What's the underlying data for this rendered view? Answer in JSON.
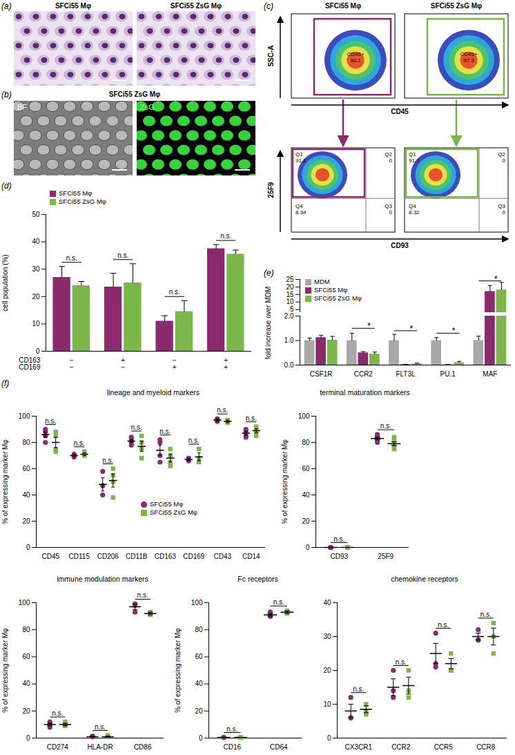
{
  "images": [
    {
      "panel": "(a)",
      "labels": [
        "SFCi55 Mφ",
        "SFCi55 ZsG Mφ"
      ]
    },
    {
      "panel": "(b)",
      "title": "SFCi55 ZsG Mφ",
      "labels": [
        "BF",
        "ZsG"
      ]
    }
  ],
  "flow_cytometry": {
    "panel": "(c)",
    "columns": [
      "SFCi55 Mφ",
      "SFCi55 ZsG Mφ"
    ],
    "colors": [
      "#8c2a6e",
      "#7ab648"
    ],
    "top": {
      "xlabel": "CD45",
      "ylabel": "SSC-A",
      "gates": [
        {
          "label": "CD45+",
          "value": 98.1
        },
        {
          "label": "CD45+",
          "value": 97.3
        }
      ]
    },
    "bottom": {
      "xlabel": "CD93",
      "ylabel": "25F9",
      "quadrants": [
        {
          "Q1": 91.1,
          "Q2": 0,
          "Q3": 0,
          "Q4": 8.94
        },
        {
          "Q1": 91.7,
          "Q2": 0,
          "Q3": 0,
          "Q4": 8.32
        }
      ]
    }
  },
  "chart_data": [
    {
      "panel": "(d)",
      "type": "bar",
      "ylabel": "cell population (%)",
      "ylim": [
        0,
        50
      ],
      "yticks": [
        0,
        10,
        20,
        30,
        40,
        50
      ],
      "categories": [
        null,
        null,
        null,
        null
      ],
      "category_rows": [
        {
          "name": "CD163",
          "labels": [
            "−",
            "+",
            "−",
            "+"
          ]
        },
        {
          "name": "CD169",
          "labels": [
            "−",
            "−",
            "+",
            "+"
          ]
        }
      ],
      "series": [
        {
          "name": "SFCi55 Mφ",
          "color": "#8c2a6e",
          "values": [
            27,
            23.5,
            11,
            37.5
          ],
          "errors": [
            4,
            5,
            2,
            1.5
          ]
        },
        {
          "name": "SFCi55 ZsG Mφ",
          "color": "#7ab648",
          "values": [
            24,
            25,
            14.5,
            35.5
          ],
          "errors": [
            1.5,
            7,
            4,
            1.5
          ]
        }
      ],
      "significance": [
        "n.s.",
        "n.s.",
        "n.s.",
        "n.s."
      ],
      "legend": "top-left"
    },
    {
      "panel": "(e)",
      "type": "bar",
      "ylabel": "fold increase over MDM",
      "categories": [
        "CSF1R",
        "CCR2",
        "FLT3L",
        "PU.1",
        "MAF"
      ],
      "axes": [
        {
          "ylim": [
            3,
            25
          ],
          "yticks": [
            5,
            10,
            15,
            20,
            25
          ]
        },
        {
          "ylim": [
            0,
            2
          ],
          "yticks": [
            0,
            1,
            2
          ]
        }
      ],
      "series": [
        {
          "name": "MDM",
          "color": "#a8a8a8",
          "values": [
            1,
            1,
            1,
            1,
            1
          ],
          "errors": [
            0.1,
            0.3,
            0.25,
            0.12,
            0.18
          ]
        },
        {
          "name": "SFCi55 Mφ",
          "color": "#8c2a6e",
          "values": [
            1.12,
            0.5,
            0.02,
            0.01,
            17
          ],
          "errors": [
            0.1,
            0.05,
            0.01,
            0.01,
            4
          ]
        },
        {
          "name": "SFCi55 ZsG Mφ",
          "color": "#7ab648",
          "values": [
            1.02,
            0.45,
            0.05,
            0.1,
            18
          ],
          "errors": [
            0.15,
            0.08,
            0.03,
            0.05,
            5
          ]
        }
      ],
      "significance": [
        {
          "category": "CCR2",
          "text": "*",
          "y": 1.5
        },
        {
          "category": "FLT3L",
          "text": "*",
          "y": 1.4
        },
        {
          "category": "PU.1",
          "text": "*",
          "y": 1.3
        },
        {
          "category": "MAF",
          "text": "*",
          "y": 24
        }
      ],
      "legend": "top-left"
    },
    {
      "panel": "(f)",
      "type": "scatter",
      "title": "lineage and myeloid markers",
      "ylabel": "% of expressing marker Mφ",
      "ylim": [
        0,
        100
      ],
      "yticks": [
        0,
        20,
        40,
        60,
        80,
        100
      ],
      "categories": [
        "CD45",
        "CD115",
        "CD206",
        "CD11B",
        "CD163",
        "CD169",
        "CD43",
        "CD14"
      ],
      "series": [
        {
          "name": "SFCi55 Mφ",
          "color": "#8c2a6e",
          "marker": "circle",
          "values": [
            [
              90,
              88,
              85,
              80
            ],
            [
              70,
              69,
              71
            ],
            [
              58,
              40,
              47
            ],
            [
              82,
              80,
              84,
              78
            ],
            [
              82,
              80,
              65,
              70
            ],
            [
              68,
              67,
              66
            ],
            [
              97,
              98,
              96,
              97
            ],
            [
              88,
              85,
              90,
              84
            ]
          ],
          "mean": [
            86,
            70,
            48,
            81,
            74,
            67,
            97,
            87
          ],
          "sem": [
            2,
            1,
            5,
            1,
            4,
            1,
            1,
            1.5
          ]
        },
        {
          "name": "SFCi55 ZsG Mφ",
          "color": "#7ab648",
          "marker": "square",
          "values": [
            [
              88,
              85,
              75,
              73
            ],
            [
              70,
              72,
              73,
              71
            ],
            [
              60,
              38,
              50,
              55
            ],
            [
              85,
              75,
              68,
              80
            ],
            [
              75,
              65,
              62,
              70
            ],
            [
              75,
              65,
              68
            ],
            [
              96,
              97,
              95,
              97
            ],
            [
              92,
              85,
              88,
              90
            ]
          ],
          "mean": [
            80,
            71,
            51,
            77,
            68,
            69,
            96,
            89
          ],
          "sem": [
            4,
            1,
            5,
            4,
            3,
            3,
            1,
            1.5
          ]
        }
      ],
      "significance": [
        "n.s.",
        "n.s.",
        "n.s.",
        "n.s.",
        "n.s.",
        "n.s.",
        "n.s.",
        "n.s."
      ],
      "legend": "bottom-right"
    },
    {
      "type": "scatter",
      "title": "terminal maturation markers",
      "ylabel": "% of expressing marker Mφ",
      "ylim": [
        0,
        100
      ],
      "yticks": [
        0,
        20,
        40,
        60,
        80,
        100
      ],
      "categories": [
        "CD93",
        "25F9"
      ],
      "series": [
        {
          "name": "SFCi55 Mφ",
          "color": "#8c2a6e",
          "marker": "circle",
          "values": [
            [
              0,
              0,
              0,
              0,
              0,
              0
            ],
            [
              83,
              85,
              80,
              82,
              86,
              84
            ]
          ],
          "mean": [
            0,
            83
          ],
          "sem": [
            0,
            1
          ]
        },
        {
          "name": "SFCi55 ZsG Mφ",
          "color": "#7ab648",
          "marker": "square",
          "values": [
            [
              0,
              0,
              0,
              0,
              0,
              0
            ],
            [
              80,
              76,
              84,
              78,
              75,
              82
            ]
          ],
          "mean": [
            0,
            79
          ],
          "sem": [
            0,
            1.5
          ]
        }
      ],
      "significance": [
        "n.s.",
        "n.s."
      ]
    },
    {
      "type": "scatter",
      "title": "immune modulation markers",
      "ylabel": "% of expressing marker Mφ",
      "ylim": [
        0,
        100
      ],
      "yticks": [
        0,
        20,
        40,
        60,
        80,
        100
      ],
      "categories": [
        "CD274",
        "HLA-DR",
        "CD86"
      ],
      "series": [
        {
          "name": "SFCi55 Mφ",
          "color": "#8c2a6e",
          "marker": "circle",
          "values": [
            [
              10,
              12,
              8
            ],
            [
              1,
              1.5,
              1
            ],
            [
              98,
              93,
              99
            ]
          ],
          "mean": [
            10,
            1,
            97
          ],
          "sem": [
            1,
            0.3,
            2
          ]
        },
        {
          "name": "SFCi55 ZsG Mφ",
          "color": "#7ab648",
          "marker": "square",
          "values": [
            [
              12,
              10,
              9
            ],
            [
              1,
              2,
              1
            ],
            [
              92,
              91,
              93
            ]
          ],
          "mean": [
            10,
            1,
            92
          ],
          "sem": [
            1,
            0.5,
            1
          ]
        }
      ],
      "significance": [
        "n.s.",
        "n.s.",
        "n.s."
      ]
    },
    {
      "type": "scatter",
      "title": "Fc receptors",
      "ylabel": "% of expressing marker Mφ",
      "ylim": [
        0,
        100
      ],
      "yticks": [
        0,
        20,
        40,
        60,
        80,
        100
      ],
      "categories": [
        "CD16",
        "CD64"
      ],
      "series": [
        {
          "name": "SFCi55 Mφ",
          "color": "#8c2a6e",
          "marker": "circle",
          "values": [
            [
              0.5,
              0.5,
              0.5
            ],
            [
              90,
              93,
              90
            ]
          ],
          "mean": [
            0.5,
            91
          ],
          "sem": [
            0,
            1
          ]
        },
        {
          "name": "SFCi55 ZsG Mφ",
          "color": "#7ab648",
          "marker": "square",
          "values": [
            [
              0.5,
              0.5,
              0.5
            ],
            [
              92,
              94,
              93
            ]
          ],
          "mean": [
            0.5,
            93
          ],
          "sem": [
            0,
            1
          ]
        }
      ],
      "significance": [
        "n.s.",
        "n.s."
      ]
    },
    {
      "type": "scatter",
      "title": "chemokine receptors",
      "ylim": [
        0,
        40
      ],
      "yticks": [
        0,
        10,
        20,
        30,
        40
      ],
      "categories": [
        "CX3CR1",
        "CCR2",
        "CCR5",
        "CCR8"
      ],
      "series": [
        {
          "name": "SFCi55 Mφ",
          "color": "#8c2a6e",
          "marker": "circle",
          "values": [
            [
              12,
              6,
              6
            ],
            [
              20,
              12,
              14
            ],
            [
              31,
              22,
              21
            ],
            [
              32,
              29,
              29
            ]
          ],
          "mean": [
            8,
            15,
            25,
            30
          ],
          "sem": [
            2,
            2.5,
            3,
            1
          ]
        },
        {
          "name": "SFCi55 ZsG Mφ",
          "color": "#7ab648",
          "marker": "square",
          "values": [
            [
              10,
              8,
              7
            ],
            [
              20,
              12,
              14
            ],
            [
              25,
              20,
              20
            ],
            [
              34,
              25,
              30
            ]
          ],
          "mean": [
            8.5,
            15.5,
            22,
            30
          ],
          "sem": [
            1,
            2.5,
            1.5,
            2.5
          ]
        }
      ],
      "significance": [
        "n.s.",
        "n.s.",
        "n.s.",
        "n.s."
      ]
    }
  ]
}
